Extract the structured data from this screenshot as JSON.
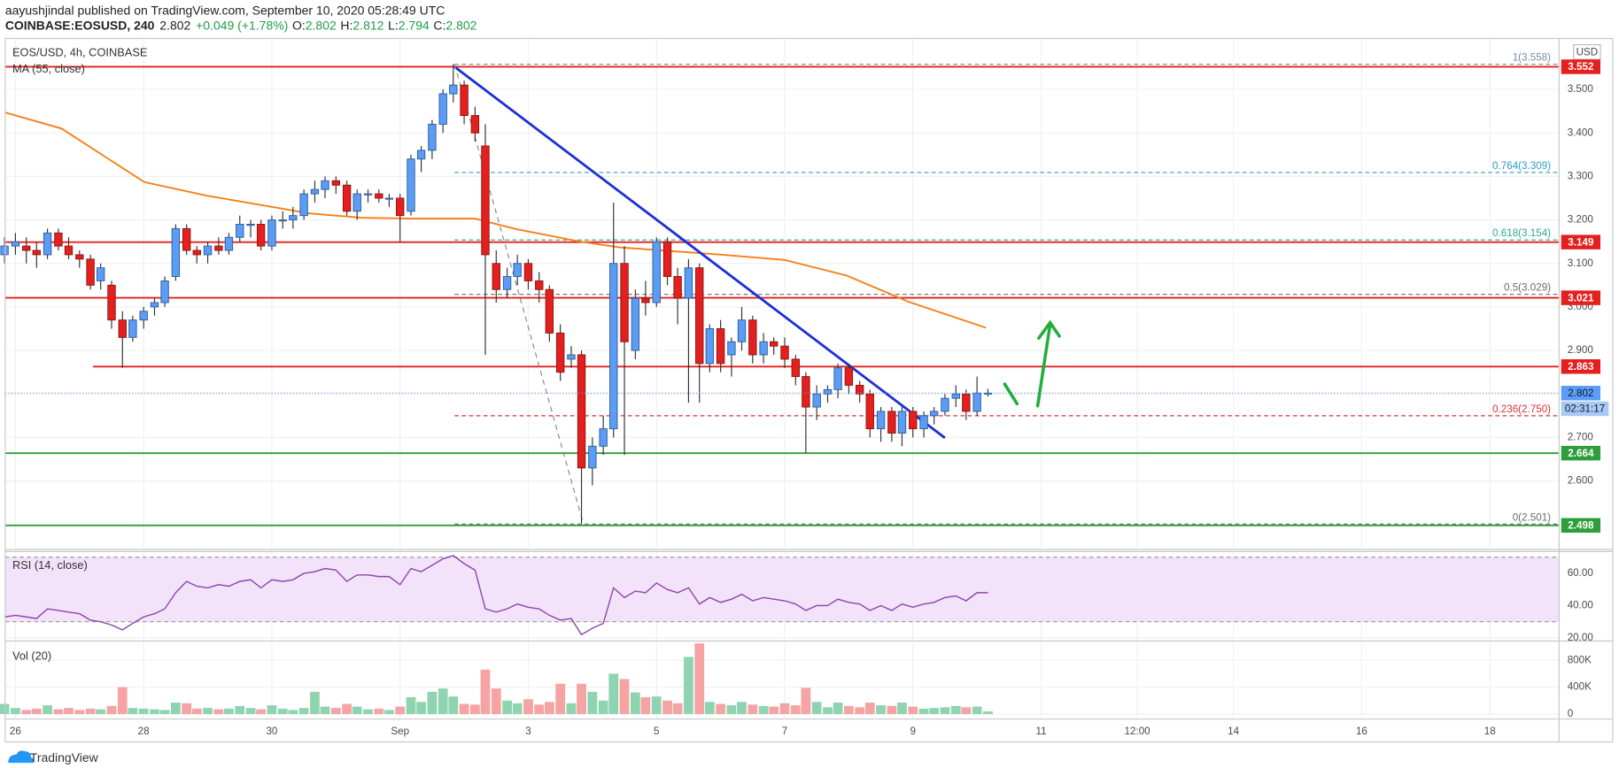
{
  "header": {
    "publisher": "aayushjindal published on TradingView.com, September 10, 2020 05:28:49 UTC",
    "symbol": "COINBASE:EOSUSD, 240",
    "last": "2.802",
    "change": "+0.049 (+1.78%)",
    "ohlc": [
      {
        "label": "O:",
        "value": "2.802"
      },
      {
        "label": "H:",
        "value": "2.812"
      },
      {
        "label": "L:",
        "value": "2.794"
      },
      {
        "label": "C:",
        "value": "2.802"
      }
    ]
  },
  "footer": {
    "brand": "TradingView"
  },
  "chart_data": [
    {
      "type": "candlestick",
      "title": "EOS/USD, 4h, COINBASE",
      "currency": "USD",
      "up_color": "#5b9cf6",
      "down_color": "#e3201e",
      "grid": true,
      "xlim": [
        25.84,
        50.08
      ],
      "xticks": [
        26,
        28,
        30,
        {
          "value": 32,
          "label": "Sep"
        },
        {
          "value": 34,
          "label": "3"
        },
        {
          "value": 36,
          "label": "5"
        },
        {
          "value": 38,
          "label": "7"
        },
        {
          "value": 40,
          "label": "9"
        },
        {
          "value": 42,
          "label": "11"
        },
        {
          "value": 43.5,
          "label": "12:00"
        },
        {
          "value": 45,
          "label": "14"
        },
        {
          "value": 47,
          "label": "16"
        },
        {
          "value": 49,
          "label": "18"
        }
      ],
      "ylim": [
        2.445,
        3.617
      ],
      "yticks": [
        {
          "value": 2.6,
          "label": "2.600"
        },
        {
          "value": 2.7,
          "label": "2.700"
        },
        {
          "value": 2.8,
          "label": "2.800"
        },
        {
          "value": 2.9,
          "label": "2.900"
        },
        {
          "value": 3.0,
          "label": "3.000"
        },
        {
          "value": 3.1,
          "label": "3.100"
        },
        {
          "value": 3.2,
          "label": "3.200"
        },
        {
          "value": 3.3,
          "label": "3.300"
        },
        {
          "value": 3.4,
          "label": "3.400"
        },
        {
          "value": 3.5,
          "label": "3.500"
        }
      ],
      "x": [
        25.83,
        26,
        26.17,
        26.33,
        26.5,
        26.67,
        26.83,
        27,
        27.17,
        27.33,
        27.5,
        27.67,
        27.83,
        28,
        28.17,
        28.33,
        28.5,
        28.67,
        28.83,
        29,
        29.17,
        29.33,
        29.5,
        29.67,
        29.83,
        30,
        30.17,
        30.33,
        30.5,
        30.67,
        30.83,
        31,
        31.17,
        31.33,
        31.5,
        31.67,
        31.83,
        32,
        32.17,
        32.33,
        32.5,
        32.67,
        32.83,
        33,
        33.17,
        33.33,
        33.5,
        33.67,
        33.83,
        34,
        34.17,
        34.33,
        34.5,
        34.67,
        34.83,
        35,
        35.17,
        35.33,
        35.5,
        35.67,
        35.83,
        36,
        36.17,
        36.33,
        36.5,
        36.67,
        36.83,
        37,
        37.17,
        37.33,
        37.5,
        37.67,
        37.83,
        38,
        38.17,
        38.33,
        38.5,
        38.67,
        38.83,
        39,
        39.17,
        39.33,
        39.5,
        39.67,
        39.83,
        40,
        40.17,
        40.33,
        40.5,
        40.67,
        40.83,
        41,
        41.17
      ],
      "ohlc": [
        [
          3.12,
          3.16,
          3.1,
          3.14
        ],
        [
          3.14,
          3.17,
          3.12,
          3.15
        ],
        [
          3.14,
          3.16,
          3.1,
          3.13
        ],
        [
          3.13,
          3.15,
          3.09,
          3.12
        ],
        [
          3.12,
          3.18,
          3.11,
          3.17
        ],
        [
          3.17,
          3.18,
          3.13,
          3.14
        ],
        [
          3.14,
          3.16,
          3.11,
          3.12
        ],
        [
          3.12,
          3.13,
          3.09,
          3.11
        ],
        [
          3.11,
          3.12,
          3.04,
          3.05
        ],
        [
          3.06,
          3.1,
          3.04,
          3.09
        ],
        [
          3.05,
          3.06,
          2.95,
          2.97
        ],
        [
          2.97,
          2.99,
          2.86,
          2.93
        ],
        [
          2.93,
          2.98,
          2.92,
          2.97
        ],
        [
          2.97,
          3.0,
          2.95,
          2.99
        ],
        [
          3.0,
          3.02,
          2.98,
          3.01
        ],
        [
          3.01,
          3.07,
          3.0,
          3.06
        ],
        [
          3.07,
          3.19,
          3.06,
          3.18
        ],
        [
          3.18,
          3.19,
          3.12,
          3.13
        ],
        [
          3.13,
          3.14,
          3.1,
          3.12
        ],
        [
          3.12,
          3.15,
          3.1,
          3.14
        ],
        [
          3.14,
          3.16,
          3.12,
          3.13
        ],
        [
          3.13,
          3.17,
          3.12,
          3.16
        ],
        [
          3.16,
          3.21,
          3.15,
          3.19
        ],
        [
          3.19,
          3.2,
          3.16,
          3.19
        ],
        [
          3.19,
          3.2,
          3.13,
          3.14
        ],
        [
          3.14,
          3.21,
          3.13,
          3.2
        ],
        [
          3.2,
          3.22,
          3.18,
          3.2
        ],
        [
          3.2,
          3.23,
          3.18,
          3.21
        ],
        [
          3.21,
          3.27,
          3.2,
          3.26
        ],
        [
          3.26,
          3.29,
          3.24,
          3.27
        ],
        [
          3.27,
          3.3,
          3.25,
          3.29
        ],
        [
          3.29,
          3.3,
          3.26,
          3.28
        ],
        [
          3.28,
          3.29,
          3.21,
          3.22
        ],
        [
          3.22,
          3.27,
          3.2,
          3.26
        ],
        [
          3.26,
          3.27,
          3.24,
          3.26
        ],
        [
          3.26,
          3.27,
          3.24,
          3.25
        ],
        [
          3.25,
          3.26,
          3.23,
          3.25
        ],
        [
          3.25,
          3.26,
          3.15,
          3.21
        ],
        [
          3.22,
          3.35,
          3.21,
          3.34
        ],
        [
          3.34,
          3.37,
          3.31,
          3.36
        ],
        [
          3.36,
          3.43,
          3.34,
          3.42
        ],
        [
          3.42,
          3.5,
          3.4,
          3.49
        ],
        [
          3.49,
          3.558,
          3.47,
          3.51
        ],
        [
          3.51,
          3.52,
          3.42,
          3.44
        ],
        [
          3.44,
          3.46,
          3.38,
          3.4
        ],
        [
          3.37,
          3.42,
          2.89,
          3.12
        ],
        [
          3.1,
          3.13,
          3.01,
          3.04
        ],
        [
          3.04,
          3.09,
          3.02,
          3.07
        ],
        [
          3.07,
          3.12,
          3.05,
          3.1
        ],
        [
          3.1,
          3.11,
          3.04,
          3.06
        ],
        [
          3.06,
          3.08,
          3.01,
          3.04
        ],
        [
          3.04,
          3.05,
          2.92,
          2.94
        ],
        [
          2.94,
          2.96,
          2.83,
          2.85
        ],
        [
          2.88,
          2.91,
          2.86,
          2.89
        ],
        [
          2.89,
          2.9,
          2.501,
          2.63
        ],
        [
          2.63,
          2.7,
          2.59,
          2.68
        ],
        [
          2.68,
          2.75,
          2.66,
          2.72
        ],
        [
          2.72,
          3.24,
          2.7,
          3.1
        ],
        [
          3.1,
          3.14,
          2.66,
          2.92
        ],
        [
          2.9,
          3.04,
          2.88,
          3.02
        ],
        [
          3.02,
          3.06,
          2.98,
          3.01
        ],
        [
          3.01,
          3.16,
          3.0,
          3.15
        ],
        [
          3.15,
          3.16,
          3.05,
          3.07
        ],
        [
          3.07,
          3.09,
          2.96,
          3.02
        ],
        [
          3.02,
          3.11,
          2.78,
          3.09
        ],
        [
          3.09,
          3.1,
          2.78,
          2.87
        ],
        [
          2.87,
          2.96,
          2.85,
          2.95
        ],
        [
          2.95,
          2.97,
          2.85,
          2.87
        ],
        [
          2.89,
          2.93,
          2.84,
          2.92
        ],
        [
          2.92,
          3.0,
          2.9,
          2.97
        ],
        [
          2.97,
          2.98,
          2.87,
          2.89
        ],
        [
          2.89,
          2.94,
          2.87,
          2.92
        ],
        [
          2.92,
          2.93,
          2.89,
          2.91
        ],
        [
          2.91,
          2.93,
          2.86,
          2.88
        ],
        [
          2.88,
          2.89,
          2.82,
          2.84
        ],
        [
          2.84,
          2.85,
          2.664,
          2.77
        ],
        [
          2.77,
          2.82,
          2.74,
          2.8
        ],
        [
          2.8,
          2.82,
          2.78,
          2.81
        ],
        [
          2.81,
          2.87,
          2.79,
          2.86
        ],
        [
          2.86,
          2.87,
          2.8,
          2.82
        ],
        [
          2.82,
          2.83,
          2.78,
          2.8
        ],
        [
          2.8,
          2.81,
          2.7,
          2.72
        ],
        [
          2.72,
          2.77,
          2.69,
          2.76
        ],
        [
          2.76,
          2.77,
          2.69,
          2.71
        ],
        [
          2.71,
          2.77,
          2.68,
          2.76
        ],
        [
          2.76,
          2.77,
          2.7,
          2.72
        ],
        [
          2.72,
          2.76,
          2.7,
          2.75
        ],
        [
          2.75,
          2.77,
          2.73,
          2.76
        ],
        [
          2.76,
          2.8,
          2.75,
          2.79
        ],
        [
          2.79,
          2.82,
          2.77,
          2.8
        ],
        [
          2.8,
          2.81,
          2.74,
          2.76
        ],
        [
          2.76,
          2.84,
          2.75,
          2.802
        ],
        [
          2.802,
          2.812,
          2.794,
          2.802
        ]
      ],
      "indicators": [
        {
          "name": "MA (55, close)",
          "color": "#f57f17",
          "x": [
            25.84,
            26.72,
            28.01,
            28.98,
            30.59,
            31.4,
            32.2,
            33.17,
            33.81,
            34.78,
            35.42,
            37.03,
            38.0,
            38.97,
            39.93,
            41.14
          ],
          "values": [
            3.447,
            3.41,
            3.287,
            3.256,
            3.215,
            3.205,
            3.203,
            3.203,
            3.179,
            3.151,
            3.137,
            3.12,
            3.108,
            3.072,
            3.012,
            2.952
          ]
        }
      ],
      "levels": [
        {
          "value": 3.552,
          "color": "#e3201e"
        },
        {
          "value": 3.149,
          "color": "#e3201e"
        },
        {
          "value": 3.021,
          "color": "#e3201e"
        },
        {
          "value": 2.863,
          "color": "#e3201e",
          "x_start": 27.21
        },
        {
          "value": 2.664,
          "color": "#2e9e3a"
        },
        {
          "value": 2.498,
          "color": "#2e9e3a"
        }
      ],
      "fib": [
        {
          "label": "1(3.558)",
          "value": 3.558,
          "color": "#7a8aa8"
        },
        {
          "label": "0.764(3.309)",
          "value": 3.309,
          "color": "#2f9bc4"
        },
        {
          "label": "0.618(3.154)",
          "value": 3.154,
          "color": "#2ea88c"
        },
        {
          "label": "0.5(3.029)",
          "value": 3.029,
          "color": "#6b6b6b"
        },
        {
          "label": "0.236(2.750)",
          "value": 2.75,
          "color": "#d9343a"
        },
        {
          "label": "0(2.501)",
          "value": 2.501,
          "color": "#6b6b6b"
        }
      ],
      "trendlines": [
        {
          "color": "#1a2fd8",
          "x": [
            32.85,
            40.5
          ],
          "values": [
            3.552,
            2.699
          ]
        },
        {
          "color": "#888888",
          "dashed": true,
          "x": [
            32.85,
            34.86
          ],
          "values": [
            3.558,
            2.501
          ]
        }
      ],
      "last_price": {
        "value": 2.802,
        "countdown": "02:31:17",
        "color": "#5b9cf6"
      }
    },
    {
      "type": "line",
      "title": "RSI (14, close)",
      "color": "#8e44ad",
      "grid": true,
      "ylim": [
        18.7,
        73.5
      ],
      "yticks": [
        {
          "value": 20,
          "label": "20.00"
        },
        {
          "value": 40,
          "label": "40.00"
        },
        {
          "value": 60,
          "label": "60.00"
        }
      ],
      "band": [
        30,
        70
      ],
      "band_color": "#f3e3fa",
      "values": [
        33,
        34,
        33,
        32,
        38,
        37,
        36,
        35,
        31,
        30,
        28,
        25,
        29,
        33,
        35,
        38,
        48,
        55,
        52,
        51,
        53,
        52,
        55,
        56,
        51,
        56,
        55,
        56,
        60,
        61,
        63,
        62,
        55,
        59,
        59,
        58,
        58,
        53,
        63,
        61,
        65,
        69,
        71,
        66,
        62,
        38,
        36,
        38,
        41,
        39,
        38,
        34,
        31,
        32,
        22,
        26,
        29,
        51,
        45,
        49,
        48,
        54,
        50,
        48,
        51,
        41,
        45,
        42,
        44,
        47,
        43,
        45,
        44,
        43,
        41,
        37,
        40,
        40,
        44,
        42,
        41,
        37,
        40,
        37,
        41,
        39,
        41,
        42,
        45,
        46,
        43,
        48,
        48
      ]
    },
    {
      "type": "bar",
      "title": "Vol (20)",
      "up_color": "#8fd4b1",
      "down_color": "#f5a3a3",
      "grid": true,
      "ylim": [
        -60000,
        1070000
      ],
      "yticks": [
        0,
        {
          "value": 400000,
          "label": "400K"
        },
        {
          "value": 800000,
          "label": "800K"
        }
      ],
      "values": [
        150000,
        90000,
        60000,
        80000,
        130000,
        70000,
        90000,
        60000,
        80000,
        70000,
        120000,
        400000,
        90000,
        80000,
        70000,
        60000,
        170000,
        160000,
        80000,
        90000,
        70000,
        80000,
        120000,
        90000,
        70000,
        130000,
        80000,
        60000,
        90000,
        330000,
        110000,
        90000,
        150000,
        110000,
        70000,
        80000,
        60000,
        110000,
        250000,
        180000,
        330000,
        380000,
        260000,
        150000,
        140000,
        660000,
        380000,
        200000,
        160000,
        220000,
        140000,
        180000,
        450000,
        160000,
        450000,
        330000,
        200000,
        600000,
        520000,
        320000,
        250000,
        260000,
        200000,
        160000,
        850000,
        1050000,
        180000,
        150000,
        130000,
        180000,
        140000,
        120000,
        110000,
        160000,
        130000,
        390000,
        180000,
        100000,
        170000,
        120000,
        100000,
        170000,
        130000,
        120000,
        170000,
        110000,
        80000,
        90000,
        100000,
        120000,
        100000,
        110000,
        40000
      ]
    }
  ]
}
